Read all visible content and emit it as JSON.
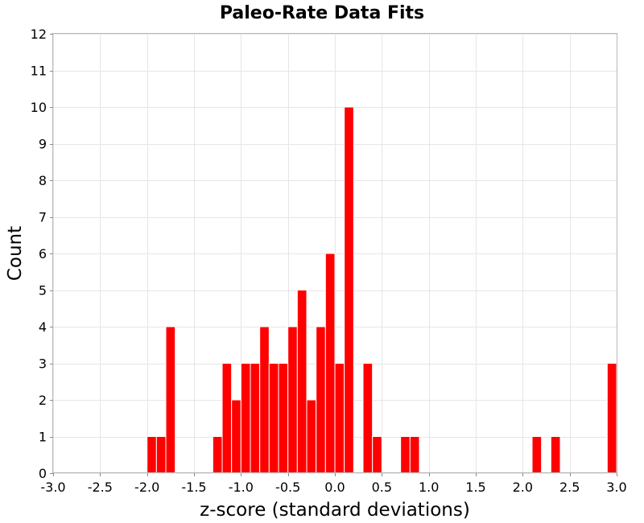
{
  "chart_data": {
    "type": "bar",
    "title": "Paleo-Rate Data Fits",
    "xlabel": "z-score (standard deviations)",
    "ylabel": "Count",
    "xlim": [
      -3.0,
      3.0
    ],
    "ylim": [
      0,
      12
    ],
    "x_ticks": [
      "-3.0",
      "-2.5",
      "-2.0",
      "-1.5",
      "-1.0",
      "-0.5",
      "0.0",
      "0.5",
      "1.0",
      "1.5",
      "2.0",
      "2.5",
      "3.0"
    ],
    "y_ticks": [
      "0",
      "1",
      "2",
      "3",
      "4",
      "5",
      "6",
      "7",
      "8",
      "9",
      "10",
      "11",
      "12"
    ],
    "grid": true,
    "legend": "none",
    "color": "#ff0000",
    "bin_width": 0.1,
    "bins": [
      {
        "x_start": -2.0,
        "x_end": -1.9,
        "count": 1
      },
      {
        "x_start": -1.9,
        "x_end": -1.8,
        "count": 1
      },
      {
        "x_start": -1.8,
        "x_end": -1.7,
        "count": 4
      },
      {
        "x_start": -1.3,
        "x_end": -1.2,
        "count": 1
      },
      {
        "x_start": -1.2,
        "x_end": -1.1,
        "count": 3
      },
      {
        "x_start": -1.1,
        "x_end": -1.0,
        "count": 2
      },
      {
        "x_start": -1.0,
        "x_end": -0.9,
        "count": 3
      },
      {
        "x_start": -0.9,
        "x_end": -0.8,
        "count": 3
      },
      {
        "x_start": -0.8,
        "x_end": -0.7,
        "count": 4
      },
      {
        "x_start": -0.7,
        "x_end": -0.6,
        "count": 3
      },
      {
        "x_start": -0.6,
        "x_end": -0.5,
        "count": 3
      },
      {
        "x_start": -0.5,
        "x_end": -0.4,
        "count": 4
      },
      {
        "x_start": -0.4,
        "x_end": -0.3,
        "count": 5
      },
      {
        "x_start": -0.3,
        "x_end": -0.2,
        "count": 2
      },
      {
        "x_start": -0.2,
        "x_end": -0.1,
        "count": 4
      },
      {
        "x_start": -0.1,
        "x_end": 0.0,
        "count": 6
      },
      {
        "x_start": 0.0,
        "x_end": 0.1,
        "count": 3
      },
      {
        "x_start": 0.1,
        "x_end": 0.2,
        "count": 10
      },
      {
        "x_start": 0.3,
        "x_end": 0.4,
        "count": 3
      },
      {
        "x_start": 0.4,
        "x_end": 0.5,
        "count": 1
      },
      {
        "x_start": 0.7,
        "x_end": 0.8,
        "count": 1
      },
      {
        "x_start": 0.8,
        "x_end": 0.9,
        "count": 1
      },
      {
        "x_start": 2.1,
        "x_end": 2.2,
        "count": 1
      },
      {
        "x_start": 2.3,
        "x_end": 2.4,
        "count": 1
      },
      {
        "x_start": 2.9,
        "x_end": 3.0,
        "count": 3
      }
    ]
  }
}
